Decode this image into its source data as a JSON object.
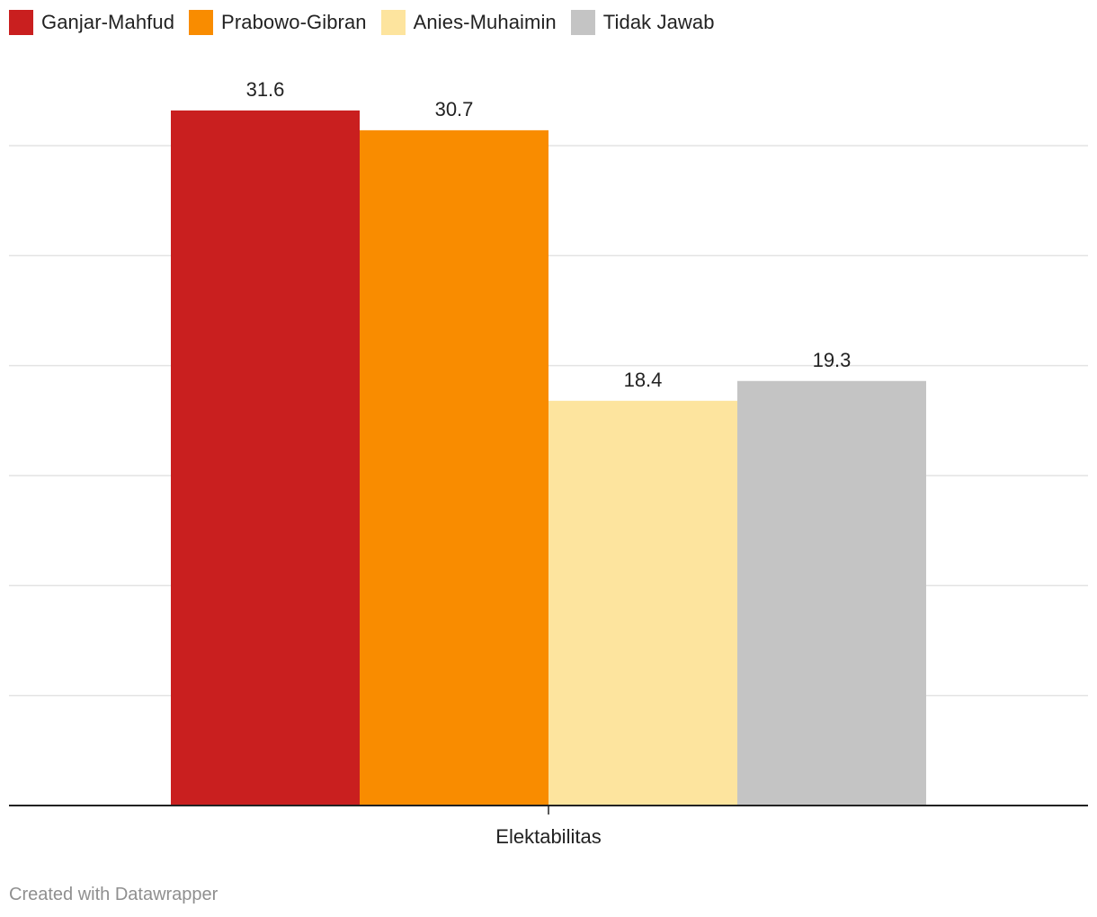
{
  "chart_data": {
    "type": "bar",
    "categories": [
      "Elektabilitas"
    ],
    "series": [
      {
        "name": "Ganjar-Mahfud",
        "values": [
          31.6
        ],
        "color": "#c91f1f"
      },
      {
        "name": "Prabowo-Gibran",
        "values": [
          30.7
        ],
        "color": "#f98c00"
      },
      {
        "name": "Anies-Muhaimin",
        "values": [
          18.4
        ],
        "color": "#fde49e"
      },
      {
        "name": "Tidak Jawab",
        "values": [
          19.3
        ],
        "color": "#c4c4c4"
      }
    ],
    "ylim": [
      0,
      30
    ],
    "gridlines": [
      0,
      5,
      10,
      15,
      20,
      25,
      30
    ],
    "grid": true,
    "y_tick_labels_visible": false,
    "legend_position": "top-left",
    "title": "",
    "xlabel": "",
    "ylabel": ""
  },
  "footer": {
    "credit": "Created with Datawrapper"
  },
  "colors": {
    "gridline": "#e3e3e3",
    "baseline": "#222222",
    "label_text": "#222222",
    "credit_text": "#8f8f8f"
  }
}
